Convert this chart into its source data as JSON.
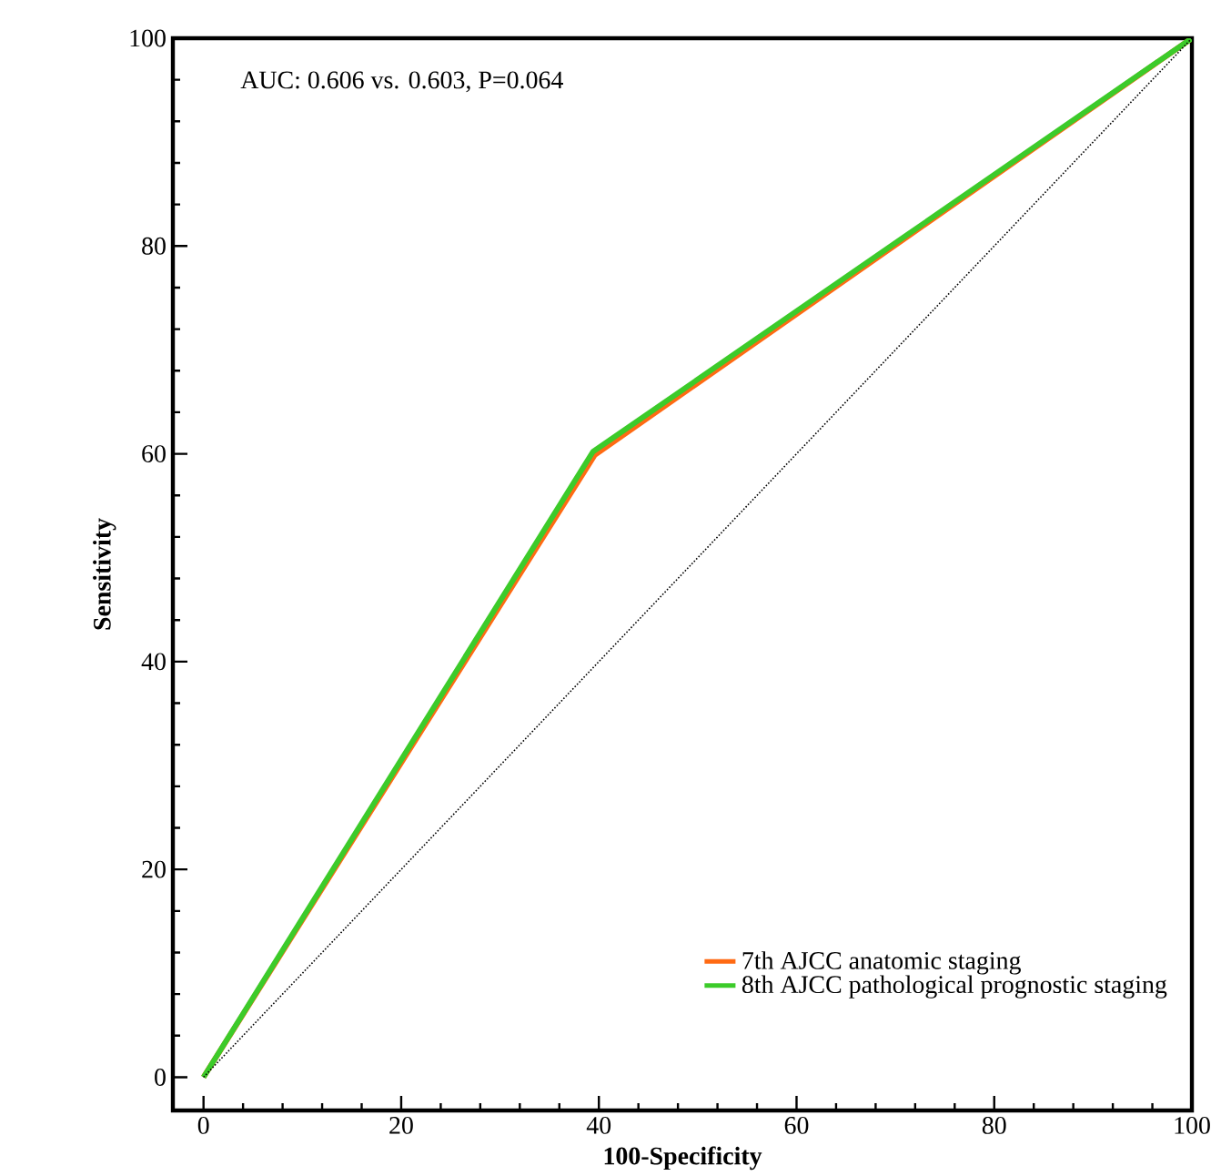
{
  "chart_data": {
    "type": "line",
    "xlabel": "100-Specificity",
    "ylabel": "Sensitivity",
    "annotations": [
      "AUC: 0.606 vs. 0.603, P=0.064"
    ],
    "series": [
      {
        "name": "7th AJCC anatomic staging",
        "color": "#ff6a13",
        "x": [
          0,
          39.6,
          100
        ],
        "values": [
          0,
          59.9,
          100
        ]
      },
      {
        "name": "8th AJCC pathological prognostic staging",
        "color": "#3ccb2a",
        "x": [
          0,
          39.4,
          100
        ],
        "values": [
          0,
          60.2,
          100
        ]
      },
      {
        "color": "#000000",
        "line_style": "dotted",
        "x": [
          0,
          100
        ],
        "values": [
          0,
          100
        ]
      }
    ],
    "xlim": [
      -3.1,
      100
    ],
    "ylim": [
      -3.2,
      100
    ],
    "xticks": [
      0,
      20,
      40,
      60,
      80,
      100
    ],
    "yticks": [
      0,
      20,
      40,
      60,
      80,
      100
    ],
    "grid": false,
    "legend": "bottom right",
    "line_style": "solid",
    "marker": "none"
  }
}
